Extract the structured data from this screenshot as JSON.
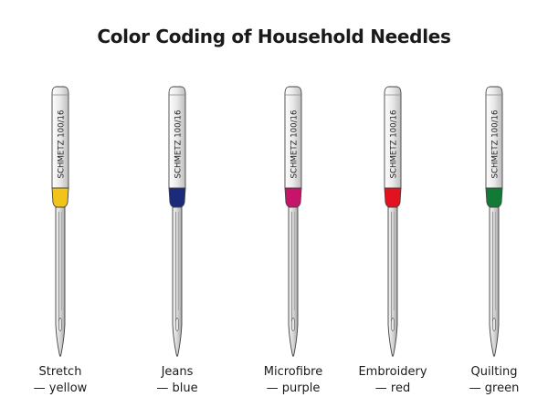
{
  "title": "Color Coding of Household Needles",
  "needles": [
    {
      "stamp": "SCHMETZ 100/16",
      "name": "Stretch",
      "color_word": "— yellow",
      "color": "#f2c318"
    },
    {
      "stamp": "SCHMETZ 100/16",
      "name": "Jeans",
      "color_word": "— blue",
      "color": "#1c2a7c"
    },
    {
      "stamp": "SCHMETZ 100/16",
      "name": "Microfibre",
      "color_word": "— purple",
      "color": "#c8136b"
    },
    {
      "stamp": "SCHMETZ 100/16",
      "name": "Embroidery",
      "color_word": "— red",
      "color": "#e3121f"
    },
    {
      "stamp": "SCHMETZ 100/16",
      "name": "Quilting",
      "color_word": "— green",
      "color": "#117a35"
    }
  ]
}
